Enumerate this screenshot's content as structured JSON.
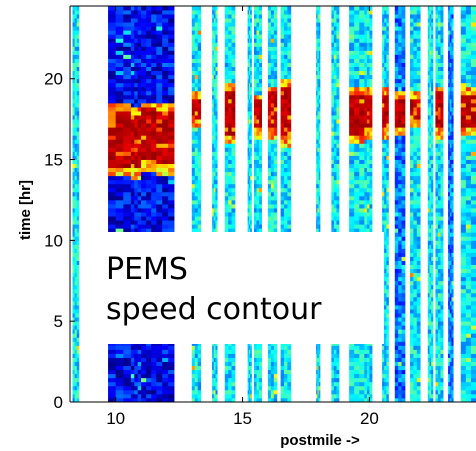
{
  "chart_data": {
    "type": "heatmap",
    "title": "",
    "xlabel": "postmile ->",
    "ylabel": "time [hr]",
    "xlim": [
      8.2,
      24.2
    ],
    "ylim": [
      0,
      24.5
    ],
    "x_ticks": [
      10,
      15,
      20
    ],
    "y_ticks": [
      0,
      5,
      10,
      15,
      20
    ],
    "x_tick_labels": [
      "10",
      "15",
      "20"
    ],
    "y_tick_labels": [
      "0",
      "5",
      "10",
      "15",
      "20"
    ],
    "colormap": "jet",
    "overlay_text": [
      "PEMS",
      "speed contour"
    ],
    "detector_strips": [
      {
        "start": 8.3,
        "end": 8.55,
        "base": "mid",
        "congestion": null
      },
      {
        "start": 9.7,
        "end": 10.6,
        "base": "dark",
        "congestion": [
          14.5,
          17.8
        ]
      },
      {
        "start": 10.6,
        "end": 11.0,
        "base": "dark",
        "congestion": [
          14.3,
          17.7
        ]
      },
      {
        "start": 11.0,
        "end": 11.6,
        "base": "dark",
        "congestion": [
          14.8,
          18.0
        ]
      },
      {
        "start": 11.6,
        "end": 12.3,
        "base": "dark",
        "congestion": [
          14.6,
          17.9
        ]
      },
      {
        "start": 13.0,
        "end": 13.35,
        "base": "mid",
        "congestion": [
          17.5,
          18.7
        ]
      },
      {
        "start": 13.8,
        "end": 14.0,
        "base": "mid",
        "congestion": null
      },
      {
        "start": 14.3,
        "end": 14.7,
        "base": "mid",
        "congestion": [
          16.5,
          19.2
        ]
      },
      {
        "start": 15.2,
        "end": 15.35,
        "base": "mid",
        "congestion": null
      },
      {
        "start": 15.45,
        "end": 15.75,
        "base": "mid",
        "congestion": [
          16.8,
          18.5
        ]
      },
      {
        "start": 16.0,
        "end": 16.35,
        "base": "mid",
        "congestion": [
          16.8,
          19.0
        ]
      },
      {
        "start": 16.5,
        "end": 16.9,
        "base": "mid",
        "congestion": [
          16.4,
          19.3
        ]
      },
      {
        "start": 17.9,
        "end": 18.05,
        "base": "mid",
        "congestion": null
      },
      {
        "start": 18.5,
        "end": 18.8,
        "base": "mid",
        "congestion": null
      },
      {
        "start": 19.2,
        "end": 19.8,
        "base": "mid",
        "congestion": [
          16.5,
          18.8
        ]
      },
      {
        "start": 19.8,
        "end": 20.1,
        "base": "mid",
        "congestion": [
          16.8,
          18.9
        ]
      },
      {
        "start": 20.5,
        "end": 20.75,
        "base": "mid",
        "congestion": [
          16.8,
          18.8
        ]
      },
      {
        "start": 21.0,
        "end": 21.4,
        "base": "blue",
        "congestion": [
          17.0,
          18.6
        ]
      },
      {
        "start": 21.6,
        "end": 22.0,
        "base": "mid",
        "congestion": [
          17.5,
          18.6
        ]
      },
      {
        "start": 22.3,
        "end": 22.5,
        "base": "mid",
        "congestion": null
      },
      {
        "start": 22.6,
        "end": 22.9,
        "base": "mid",
        "congestion": [
          16.9,
          19.0
        ]
      },
      {
        "start": 23.1,
        "end": 23.3,
        "base": "blue",
        "congestion": null
      },
      {
        "start": 23.6,
        "end": 24.2,
        "base": "mid",
        "congestion": [
          17.0,
          18.8
        ]
      }
    ]
  }
}
